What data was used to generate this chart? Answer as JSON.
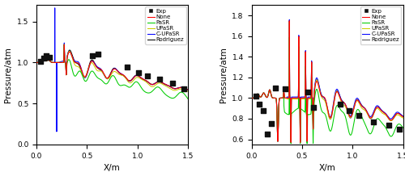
{
  "xlabel": "X/m",
  "ylabel": "Pressure/atm",
  "xlim": [
    0,
    1.5
  ],
  "ylim_left": [
    0,
    1.7
  ],
  "ylim_right": [
    0.55,
    1.9
  ],
  "yticks_left": [
    0.0,
    0.5,
    1.0,
    1.5
  ],
  "yticks_right": [
    0.6,
    0.8,
    1.0,
    1.2,
    1.4,
    1.6,
    1.8
  ],
  "xticks": [
    0.0,
    0.5,
    1.0,
    1.5
  ],
  "colors": {
    "Exp": "#111111",
    "None": "#ff0000",
    "PaSR": "#00cc00",
    "UPaSR": "#cccc00",
    "C-UPaSR": "#0000ff",
    "Rodriguez_left": "#000000",
    "Rodriguez_right": "#555555"
  },
  "exp_left_x": [
    0.04,
    0.07,
    0.1,
    0.13,
    0.55,
    0.61,
    0.9,
    1.01,
    1.1,
    1.22,
    1.35,
    1.46
  ],
  "exp_left_y": [
    1.01,
    1.05,
    1.08,
    1.06,
    1.08,
    1.1,
    0.95,
    0.88,
    0.84,
    0.8,
    0.75,
    0.68
  ],
  "exp_right_x": [
    0.04,
    0.08,
    0.12,
    0.16,
    0.2,
    0.24,
    0.33,
    0.56,
    0.61,
    0.88,
    0.97,
    1.06,
    1.21,
    1.36,
    1.46
  ],
  "exp_right_y": [
    1.02,
    0.94,
    0.88,
    0.65,
    0.75,
    1.1,
    1.09,
    1.06,
    0.91,
    0.94,
    0.88,
    0.83,
    0.77,
    0.74,
    0.7
  ]
}
